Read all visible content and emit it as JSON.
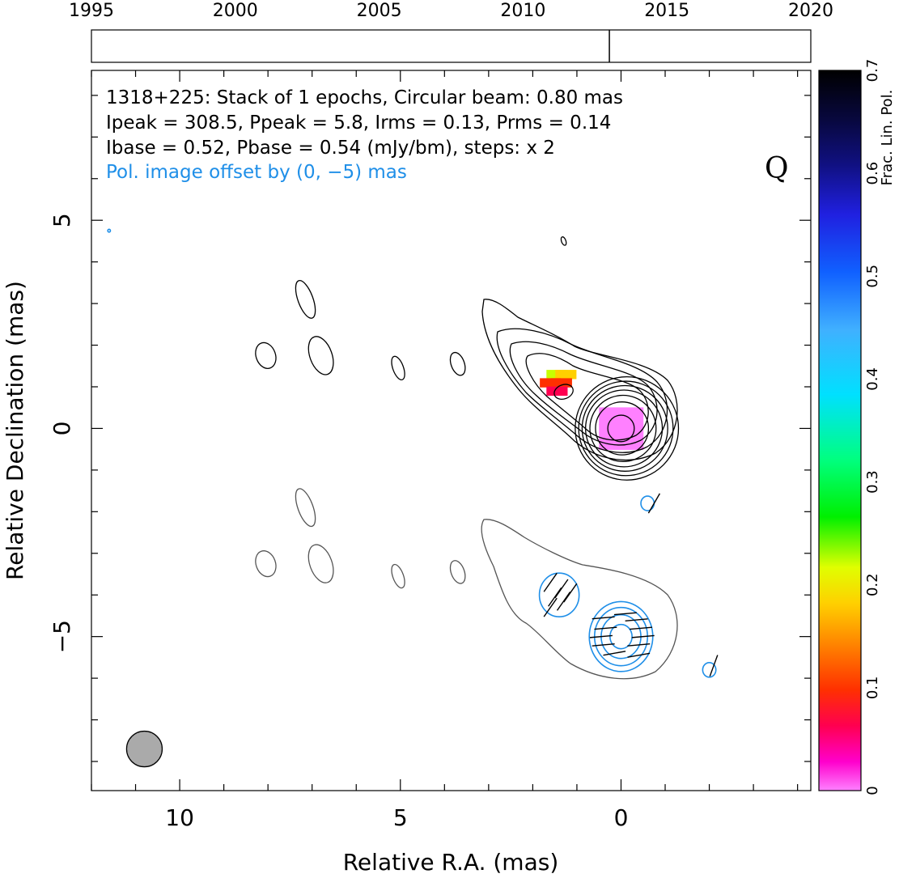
{
  "chart_data": {
    "type": "contour",
    "source": "1318+225",
    "header": {
      "line1": "1318+225: Stack of 1 epochs, Circular beam: 0.80 mas",
      "line2": "Ipeak = 308.5, Ppeak = 5.8, Irms = 0.13, Prms = 0.14",
      "line3": "Ibase = 0.52, Pbase = 0.54 (mJy/bm), steps: x 2",
      "line4": "Pol. image offset by (0, −5) mas"
    },
    "band": "Q",
    "xlabel": "Relative R.A. (mas)",
    "ylabel": "Relative Declination (mas)",
    "xlim": [
      12,
      -4.3
    ],
    "ylim": [
      -8.7,
      8.6
    ],
    "x_ticks": [
      10,
      5,
      0
    ],
    "y_ticks": [
      5,
      0,
      -5
    ],
    "x_tick_labels": [
      "10",
      "5",
      "0"
    ],
    "y_tick_labels": [
      "5",
      "0",
      "−5"
    ],
    "timeline": {
      "range": [
        1995,
        2020
      ],
      "ticks": [
        1995,
        2000,
        2005,
        2010,
        2015,
        2020
      ],
      "tick_labels": [
        "1995",
        "2000",
        "2005",
        "2010",
        "2015",
        "2020"
      ],
      "epochs": [
        2013.0
      ]
    },
    "colorbar": {
      "label": "Frac. Lin. Pol.",
      "range": [
        0,
        0.7
      ],
      "ticks": [
        0,
        0.1,
        0.2,
        0.3,
        0.4,
        0.5,
        0.6,
        0.7
      ],
      "tick_labels": [
        "0",
        "0.1",
        "0.2",
        "0.3",
        "0.4",
        "0.5",
        "0.6",
        "0.7"
      ]
    },
    "beam": {
      "x": 10.8,
      "y": -7.7,
      "diameter_mas": 0.8
    },
    "stokes_i_contours": {
      "center": [
        0,
        0
      ],
      "core_radii_mas": [
        0.3,
        0.6,
        0.75,
        0.87,
        0.97,
        1.07,
        1.17
      ]
    },
    "isolated_i_contours": [
      {
        "x": 7.15,
        "y": 3.1,
        "rx": 0.17,
        "ry": 0.45
      },
      {
        "x": 8.05,
        "y": 1.75,
        "rx": 0.22,
        "ry": 0.3
      },
      {
        "x": 6.8,
        "y": 1.75,
        "rx": 0.25,
        "ry": 0.45
      },
      {
        "x": 5.05,
        "y": 1.45,
        "rx": 0.12,
        "ry": 0.28
      },
      {
        "x": 3.7,
        "y": 1.55,
        "rx": 0.15,
        "ry": 0.27
      },
      {
        "x": 1.3,
        "y": 0.88,
        "rx": 0.22,
        "ry": 0.16
      },
      {
        "x": 1.3,
        "y": 4.5,
        "rx": 0.05,
        "ry": 0.1
      }
    ],
    "frac_pol_pixels": [
      {
        "x": 0.0,
        "y": 0.0,
        "r": 0.6,
        "value": 0.02
      },
      {
        "x": 1.45,
        "y": 1.3,
        "value": 0.22
      },
      {
        "x": 1.25,
        "y": 1.3,
        "value": 0.18
      },
      {
        "x": 1.6,
        "y": 1.1,
        "value": 0.12
      },
      {
        "x": 1.35,
        "y": 1.1,
        "value": 0.11
      },
      {
        "x": 1.45,
        "y": 0.9,
        "value": 0.06
      }
    ],
    "pol_contours": [
      {
        "x": 0.0,
        "y": -5.0,
        "radii_mas": [
          0.25,
          0.45,
          0.6,
          0.72
        ]
      },
      {
        "x": 1.4,
        "y": -4.0,
        "radii_mas": [
          0.45
        ]
      },
      {
        "x": -0.6,
        "y": -1.8,
        "radii_mas": [
          0.15
        ]
      },
      {
        "x": -2.0,
        "y": -5.8,
        "radii_mas": [
          0.15
        ]
      },
      {
        "x": 11.6,
        "y": 4.75,
        "radii_mas": [
          0.03
        ]
      }
    ],
    "evpa_ticks": [
      {
        "x": 1.6,
        "y": -3.7,
        "angle": 55
      },
      {
        "x": 1.35,
        "y": -3.85,
        "angle": 55
      },
      {
        "x": 1.15,
        "y": -3.95,
        "angle": 55
      },
      {
        "x": 1.5,
        "y": -4.05,
        "angle": 55
      },
      {
        "x": 1.3,
        "y": -4.15,
        "angle": 55
      },
      {
        "x": 1.6,
        "y": -4.3,
        "angle": 55
      },
      {
        "x": -0.1,
        "y": -4.45,
        "angle": 5
      },
      {
        "x": 0.4,
        "y": -4.55,
        "angle": 5
      },
      {
        "x": -0.35,
        "y": -4.6,
        "angle": 5
      },
      {
        "x": 0.35,
        "y": -4.8,
        "angle": 5
      },
      {
        "x": -0.45,
        "y": -4.8,
        "angle": 5
      },
      {
        "x": 0.45,
        "y": -5.0,
        "angle": 5
      },
      {
        "x": -0.5,
        "y": -5.0,
        "angle": 5
      },
      {
        "x": 0.4,
        "y": -5.2,
        "angle": 5
      },
      {
        "x": -0.4,
        "y": -5.2,
        "angle": 5
      },
      {
        "x": 0.15,
        "y": -5.4,
        "angle": 10
      },
      {
        "x": -0.4,
        "y": -5.45,
        "angle": 10
      },
      {
        "x": -0.75,
        "y": -1.8,
        "angle": 60
      },
      {
        "x": -2.1,
        "y": -5.7,
        "angle": 70
      }
    ]
  }
}
